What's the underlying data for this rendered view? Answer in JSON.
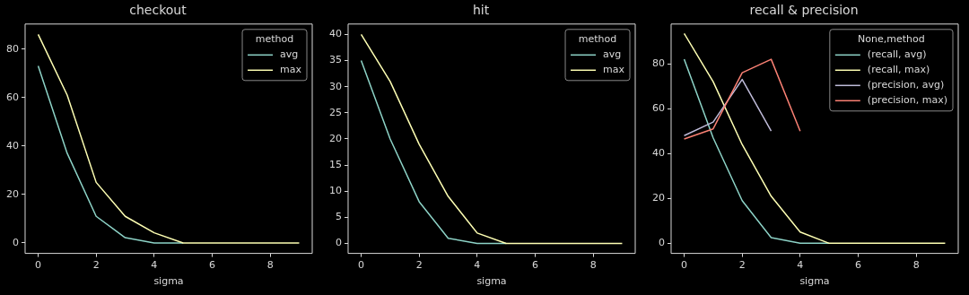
{
  "chart_data": [
    {
      "type": "line",
      "title": "checkout",
      "xlabel": "sigma",
      "x": [
        0,
        1,
        2,
        3,
        4,
        5,
        6,
        7,
        8,
        9
      ],
      "xlim": [
        -0.45,
        9.45
      ],
      "xticks": [
        0,
        2,
        4,
        6,
        8
      ],
      "ylim": [
        -4.3,
        90.3
      ],
      "yticks": [
        0,
        20,
        40,
        60,
        80
      ],
      "legend": "top right",
      "legend_title": "method",
      "marker": "none",
      "series": [
        {
          "name": "avg",
          "color": "#8dd3c7",
          "values": [
            73,
            37,
            11,
            2.2,
            0,
            0,
            null,
            null,
            null,
            null
          ]
        },
        {
          "name": "max",
          "color": "#feffb3",
          "values": [
            86,
            61,
            25,
            11,
            4.2,
            0,
            0,
            0,
            0,
            0
          ]
        }
      ]
    },
    {
      "type": "line",
      "title": "hit",
      "xlabel": "sigma",
      "x": [
        0,
        1,
        2,
        3,
        4,
        5,
        6,
        7,
        8,
        9
      ],
      "xlim": [
        -0.45,
        9.45
      ],
      "xticks": [
        0,
        2,
        4,
        6,
        8
      ],
      "ylim": [
        -1.9,
        42
      ],
      "yticks": [
        0,
        5,
        10,
        15,
        20,
        25,
        30,
        35,
        40
      ],
      "legend": "top right",
      "legend_title": "method",
      "marker": "none",
      "series": [
        {
          "name": "avg",
          "color": "#8dd3c7",
          "values": [
            35,
            20,
            8,
            1,
            0,
            0,
            null,
            null,
            null,
            null
          ]
        },
        {
          "name": "max",
          "color": "#feffb3",
          "values": [
            40,
            31,
            19,
            9,
            2,
            0,
            0,
            0,
            0,
            0
          ]
        }
      ]
    },
    {
      "type": "line",
      "title": "recall & precision",
      "xlabel": "sigma",
      "x": [
        0,
        1,
        2,
        3,
        4,
        5,
        6,
        7,
        8,
        9
      ],
      "xlim": [
        -0.45,
        9.45
      ],
      "xticks": [
        0,
        2,
        4,
        6,
        8
      ],
      "ylim": [
        -4.5,
        97.7
      ],
      "yticks": [
        0,
        20,
        40,
        60,
        80
      ],
      "legend": "top right",
      "legend_title": "None,method",
      "marker": "none",
      "series": [
        {
          "name": "(recall, avg)",
          "color": "#8dd3c7",
          "values": [
            82,
            47,
            19,
            2.5,
            0,
            0,
            null,
            null,
            null,
            null
          ]
        },
        {
          "name": "(recall, max)",
          "color": "#feffb3",
          "values": [
            93.5,
            72,
            44,
            21,
            5,
            0,
            0,
            0,
            0,
            0
          ]
        },
        {
          "name": "(precision, avg)",
          "color": "#bfbbd9",
          "values": [
            48,
            54,
            73,
            50,
            null,
            null,
            null,
            null,
            null,
            null
          ]
        },
        {
          "name": "(precision, max)",
          "color": "#fa8174",
          "values": [
            46.5,
            51,
            76,
            82,
            50,
            null,
            null,
            null,
            null,
            null
          ]
        }
      ]
    }
  ]
}
